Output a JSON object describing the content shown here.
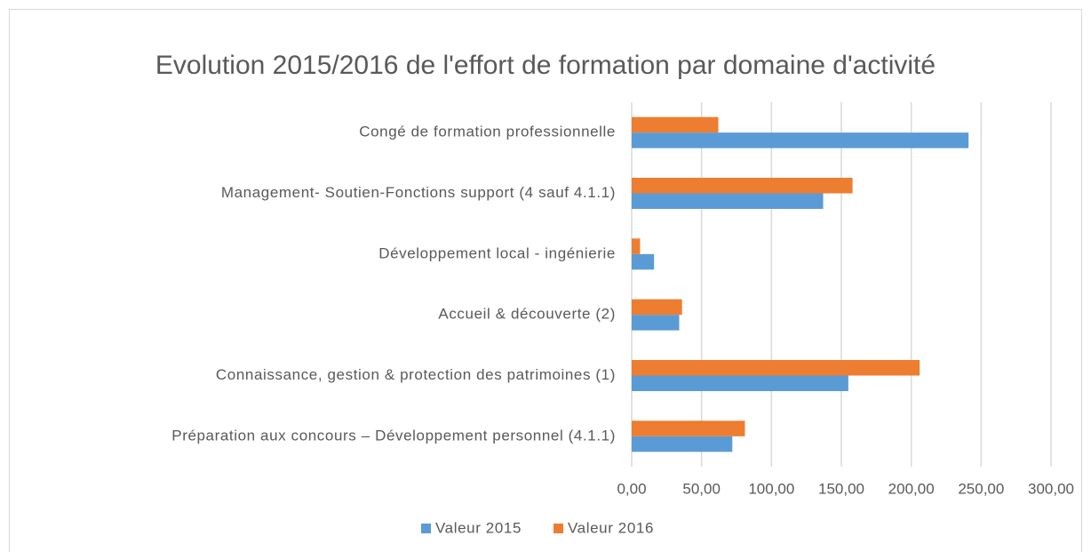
{
  "chart_data": {
    "type": "barh",
    "title": "Evolution 2015/2016 de l'effort de formation par domaine d'activité",
    "categories": [
      "Congé de formation professionnelle",
      "Management- Soutien-Fonctions support (4 sauf 4.1.1)",
      "Développement local - ingénierie",
      "Accueil & découverte (2)",
      "Connaissance, gestion & protection des patrimoines (1)",
      "Préparation aux concours – Développement personnel (4.1.1)"
    ],
    "series": [
      {
        "name": "Valeur 2015",
        "color": "#5b9bd5",
        "values": [
          241,
          137,
          16,
          34,
          155,
          72
        ]
      },
      {
        "name": "Valeur 2016",
        "color": "#ed7d31",
        "values": [
          62,
          158,
          6,
          36,
          206,
          81
        ]
      }
    ],
    "xlim": [
      0,
      300
    ],
    "xticks": [
      {
        "value": 0,
        "label": "0,00"
      },
      {
        "value": 50,
        "label": "50,00"
      },
      {
        "value": 100,
        "label": "100,00"
      },
      {
        "value": 150,
        "label": "150,00"
      },
      {
        "value": 200,
        "label": "200,00"
      },
      {
        "value": 250,
        "label": "250,00"
      },
      {
        "value": 300,
        "label": "300,00"
      }
    ],
    "grid": true,
    "legend": "bottom"
  }
}
